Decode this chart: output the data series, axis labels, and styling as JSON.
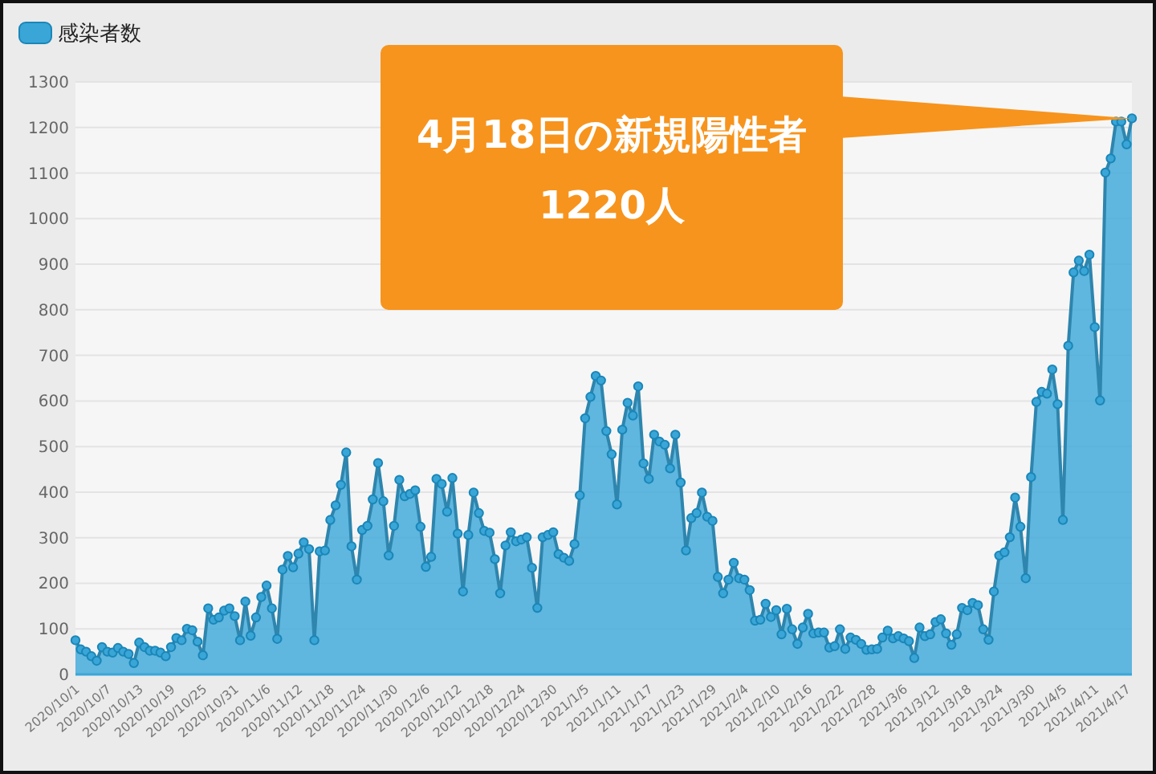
{
  "chart_data": {
    "type": "area",
    "legend": "top left",
    "grid": "y",
    "marker": "circle",
    "xlim": [
      "2020-10-01",
      "2021-04-18"
    ],
    "ylim": [
      0,
      1300
    ],
    "yticks": [
      0,
      100,
      200,
      300,
      400,
      500,
      600,
      700,
      800,
      900,
      1000,
      1100,
      1200,
      1300
    ],
    "xticks": [
      {
        "value": "2020-10-01",
        "label": "2020/10/1"
      },
      {
        "value": "2020-10-07",
        "label": "2020/10/7"
      },
      {
        "value": "2020-10-13",
        "label": "2020/10/13"
      },
      {
        "value": "2020-10-19",
        "label": "2020/10/19"
      },
      {
        "value": "2020-10-25",
        "label": "2020/10/25"
      },
      {
        "value": "2020-10-31",
        "label": "2020/10/31"
      },
      {
        "value": "2020-11-06",
        "label": "2020/11/6"
      },
      {
        "value": "2020-11-12",
        "label": "2020/11/12"
      },
      {
        "value": "2020-11-18",
        "label": "2020/11/18"
      },
      {
        "value": "2020-11-24",
        "label": "2020/11/24"
      },
      {
        "value": "2020-11-30",
        "label": "2020/11/30"
      },
      {
        "value": "2020-12-06",
        "label": "2020/12/6"
      },
      {
        "value": "2020-12-12",
        "label": "2020/12/12"
      },
      {
        "value": "2020-12-18",
        "label": "2020/12/18"
      },
      {
        "value": "2020-12-24",
        "label": "2020/12/24"
      },
      {
        "value": "2020-12-30",
        "label": "2020/12/30"
      },
      {
        "value": "2021-01-05",
        "label": "2021/1/5"
      },
      {
        "value": "2021-01-11",
        "label": "2021/1/11"
      },
      {
        "value": "2021-01-17",
        "label": "2021/1/17"
      },
      {
        "value": "2021-01-23",
        "label": "2021/1/23"
      },
      {
        "value": "2021-01-29",
        "label": "2021/1/29"
      },
      {
        "value": "2021-02-04",
        "label": "2021/2/4"
      },
      {
        "value": "2021-02-10",
        "label": "2021/2/10"
      },
      {
        "value": "2021-02-16",
        "label": "2021/2/16"
      },
      {
        "value": "2021-02-22",
        "label": "2021/2/22"
      },
      {
        "value": "2021-02-28",
        "label": "2021/2/28"
      },
      {
        "value": "2021-03-06",
        "label": "2021/3/6"
      },
      {
        "value": "2021-03-12",
        "label": "2021/3/12"
      },
      {
        "value": "2021-03-18",
        "label": "2021/3/18"
      },
      {
        "value": "2021-03-24",
        "label": "2021/3/24"
      },
      {
        "value": "2021-03-30",
        "label": "2021/3/30"
      },
      {
        "value": "2021-04-05",
        "label": "2021/4/5"
      },
      {
        "value": "2021-04-11",
        "label": "2021/4/11"
      },
      {
        "value": "2021-04-17",
        "label": "2021/4/17"
      }
    ],
    "annotations": [
      {
        "text": "4月18日の新規陽性者\n1220人",
        "x": "2021-04-18",
        "y": 1220
      }
    ],
    "x": [
      "2020-10-01",
      "2020-10-02",
      "2020-10-03",
      "2020-10-04",
      "2020-10-05",
      "2020-10-06",
      "2020-10-07",
      "2020-10-08",
      "2020-10-09",
      "2020-10-10",
      "2020-10-11",
      "2020-10-12",
      "2020-10-13",
      "2020-10-14",
      "2020-10-15",
      "2020-10-16",
      "2020-10-17",
      "2020-10-18",
      "2020-10-19",
      "2020-10-20",
      "2020-10-21",
      "2020-10-22",
      "2020-10-23",
      "2020-10-24",
      "2020-10-25",
      "2020-10-26",
      "2020-10-27",
      "2020-10-28",
      "2020-10-29",
      "2020-10-30",
      "2020-10-31",
      "2020-11-01",
      "2020-11-02",
      "2020-11-03",
      "2020-11-04",
      "2020-11-05",
      "2020-11-06",
      "2020-11-07",
      "2020-11-08",
      "2020-11-09",
      "2020-11-10",
      "2020-11-11",
      "2020-11-12",
      "2020-11-13",
      "2020-11-14",
      "2020-11-15",
      "2020-11-16",
      "2020-11-17",
      "2020-11-18",
      "2020-11-19",
      "2020-11-20",
      "2020-11-21",
      "2020-11-22",
      "2020-11-23",
      "2020-11-24",
      "2020-11-25",
      "2020-11-26",
      "2020-11-27",
      "2020-11-28",
      "2020-11-29",
      "2020-11-30",
      "2020-12-01",
      "2020-12-02",
      "2020-12-03",
      "2020-12-04",
      "2020-12-05",
      "2020-12-06",
      "2020-12-07",
      "2020-12-08",
      "2020-12-09",
      "2020-12-10",
      "2020-12-11",
      "2020-12-12",
      "2020-12-13",
      "2020-12-14",
      "2020-12-15",
      "2020-12-16",
      "2020-12-17",
      "2020-12-18",
      "2020-12-19",
      "2020-12-20",
      "2020-12-21",
      "2020-12-22",
      "2020-12-23",
      "2020-12-24",
      "2020-12-25",
      "2020-12-26",
      "2020-12-27",
      "2020-12-28",
      "2020-12-29",
      "2020-12-30",
      "2020-12-31",
      "2021-01-01",
      "2021-01-02",
      "2021-01-03",
      "2021-01-04",
      "2021-01-05",
      "2021-01-06",
      "2021-01-07",
      "2021-01-08",
      "2021-01-09",
      "2021-01-10",
      "2021-01-11",
      "2021-01-12",
      "2021-01-13",
      "2021-01-14",
      "2021-01-15",
      "2021-01-16",
      "2021-01-17",
      "2021-01-18",
      "2021-01-19",
      "2021-01-20",
      "2021-01-21",
      "2021-01-22",
      "2021-01-23",
      "2021-01-24",
      "2021-01-25",
      "2021-01-26",
      "2021-01-27",
      "2021-01-28",
      "2021-01-29",
      "2021-01-30",
      "2021-01-31",
      "2021-02-01",
      "2021-02-02",
      "2021-02-03",
      "2021-02-04",
      "2021-02-05",
      "2021-02-06",
      "2021-02-07",
      "2021-02-08",
      "2021-02-09",
      "2021-02-10",
      "2021-02-11",
      "2021-02-12",
      "2021-02-13",
      "2021-02-14",
      "2021-02-15",
      "2021-02-16",
      "2021-02-17",
      "2021-02-18",
      "2021-02-19",
      "2021-02-20",
      "2021-02-21",
      "2021-02-22",
      "2021-02-23",
      "2021-02-24",
      "2021-02-25",
      "2021-02-26",
      "2021-02-27",
      "2021-02-28",
      "2021-03-01",
      "2021-03-02",
      "2021-03-03",
      "2021-03-04",
      "2021-03-05",
      "2021-03-06",
      "2021-03-07",
      "2021-03-08",
      "2021-03-09",
      "2021-03-10",
      "2021-03-11",
      "2021-03-12",
      "2021-03-13",
      "2021-03-14",
      "2021-03-15",
      "2021-03-16",
      "2021-03-17",
      "2021-03-18",
      "2021-03-19",
      "2021-03-20",
      "2021-03-21",
      "2021-03-22",
      "2021-03-23",
      "2021-03-24",
      "2021-03-25",
      "2021-03-26",
      "2021-03-27",
      "2021-03-28",
      "2021-03-29",
      "2021-03-30",
      "2021-03-31",
      "2021-04-01",
      "2021-04-02",
      "2021-04-03",
      "2021-04-04",
      "2021-04-05",
      "2021-04-06",
      "2021-04-07",
      "2021-04-08",
      "2021-04-09",
      "2021-04-10",
      "2021-04-11",
      "2021-04-12",
      "2021-04-13",
      "2021-04-14",
      "2021-04-15",
      "2021-04-16",
      "2021-04-17",
      "2021-04-18"
    ],
    "series": [
      {
        "name": "感染者数",
        "color": "#3aa6d8",
        "values": [
          75,
          55,
          50,
          40,
          30,
          60,
          50,
          48,
          58,
          50,
          45,
          25,
          70,
          60,
          52,
          52,
          48,
          40,
          60,
          80,
          75,
          100,
          97,
          72,
          42,
          145,
          120,
          125,
          140,
          145,
          128,
          75,
          160,
          85,
          125,
          170,
          195,
          145,
          78,
          230,
          260,
          235,
          265,
          290,
          275,
          75,
          270,
          272,
          339,
          371,
          416,
          487,
          281,
          208,
          317,
          326,
          384,
          464,
          380,
          261,
          326,
          427,
          391,
          396,
          404,
          324,
          236,
          258,
          429,
          418,
          357,
          431,
          309,
          182,
          306,
          399,
          354,
          315,
          311,
          253,
          178,
          283,
          312,
          292,
          296,
          301,
          234,
          146,
          301,
          306,
          312,
          264,
          256,
          249,
          286,
          393,
          562,
          609,
          655,
          645,
          534,
          483,
          373,
          537,
          596,
          568,
          632,
          463,
          429,
          526,
          511,
          504,
          452,
          526,
          421,
          272,
          343,
          354,
          399,
          346,
          337,
          214,
          178,
          208,
          245,
          211,
          208,
          185,
          118,
          120,
          155,
          126,
          141,
          88,
          144,
          99,
          67,
          103,
          133,
          90,
          92,
          92,
          59,
          62,
          99,
          56,
          81,
          76,
          67,
          54,
          55,
          56,
          81,
          96,
          79,
          84,
          79,
          73,
          36,
          103,
          84,
          88,
          115,
          121,
          90,
          65,
          88,
          146,
          141,
          157,
          152,
          99,
          76,
          182,
          261,
          268,
          301,
          388,
          324,
          211,
          433,
          598,
          620,
          616,
          669,
          593,
          339,
          721,
          882,
          908,
          885,
          921,
          762,
          601,
          1101,
          1132,
          1213,
          1213,
          1163,
          1220
        ]
      }
    ]
  }
}
